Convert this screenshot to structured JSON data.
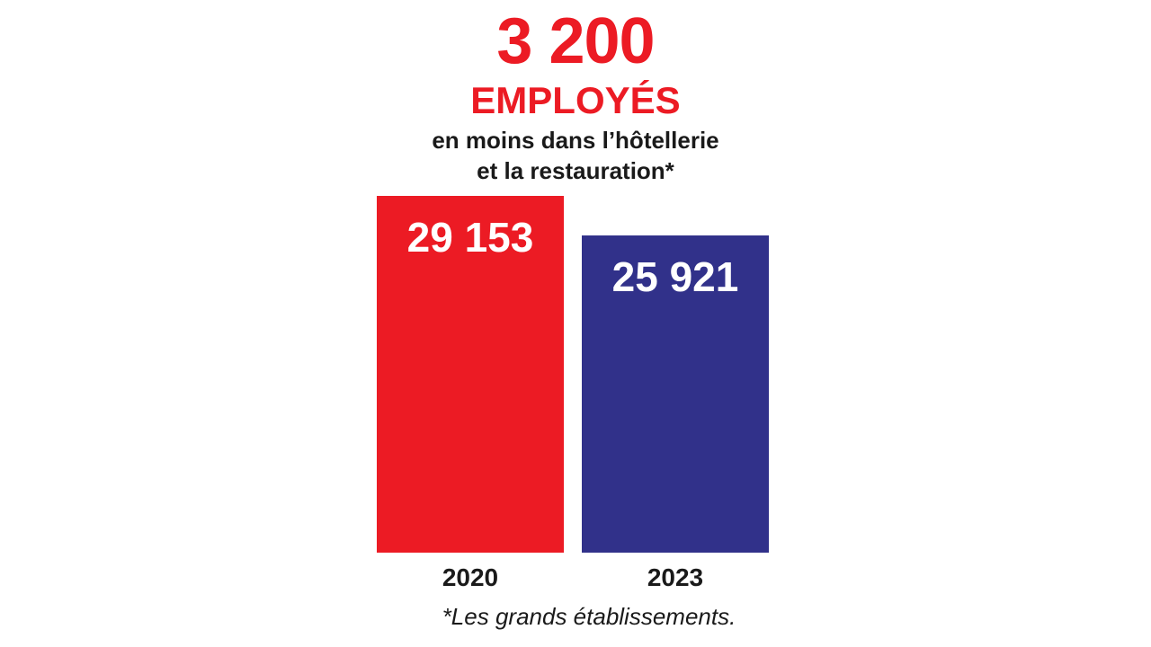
{
  "headline": {
    "number": "3 200",
    "word": "EMPLOYÉS",
    "line1": "en moins dans l’hôtellerie",
    "line2": "et la restauration*",
    "accent_color": "#ec1b24"
  },
  "chart_data": {
    "type": "bar",
    "categories": [
      "2020",
      "2023"
    ],
    "values": [
      29153,
      25921
    ],
    "value_labels": [
      "29 153",
      "25 921"
    ],
    "bar_colors": [
      "#ec1b24",
      "#31318a"
    ],
    "title": "",
    "xlabel": "",
    "ylabel": "",
    "ylim": [
      0,
      29153
    ],
    "grid": false,
    "legend": "none"
  },
  "footnote": "*Les grands établissements."
}
